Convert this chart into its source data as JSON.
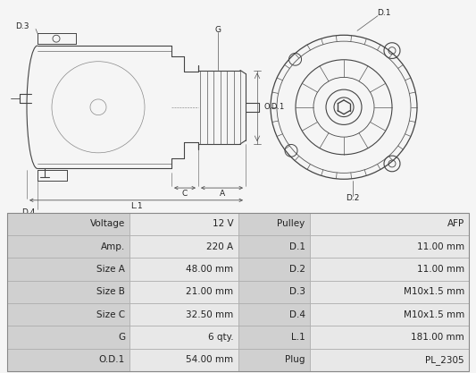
{
  "background_color": "#f5f5f5",
  "diagram_bg": "#f0f0f0",
  "table_data": [
    [
      "Voltage",
      "12 V",
      "Pulley",
      "AFP"
    ],
    [
      "Amp.",
      "220 A",
      "D.1",
      "11.00 mm"
    ],
    [
      "Size A",
      "48.00 mm",
      "D.2",
      "11.00 mm"
    ],
    [
      "Size B",
      "21.00 mm",
      "D.3",
      "M10x1.5 mm"
    ],
    [
      "Size C",
      "32.50 mm",
      "D.4",
      "M10x1.5 mm"
    ],
    [
      "G",
      "6 qty.",
      "L.1",
      "181.00 mm"
    ],
    [
      "O.D.1",
      "54.00 mm",
      "Plug",
      "PL_2305"
    ]
  ],
  "header_bg": "#d0d0d0",
  "value_bg": "#e8e8e8",
  "border_color": "#aaaaaa",
  "text_color": "#222222",
  "line_color": "#444444",
  "dim_color": "#555555"
}
